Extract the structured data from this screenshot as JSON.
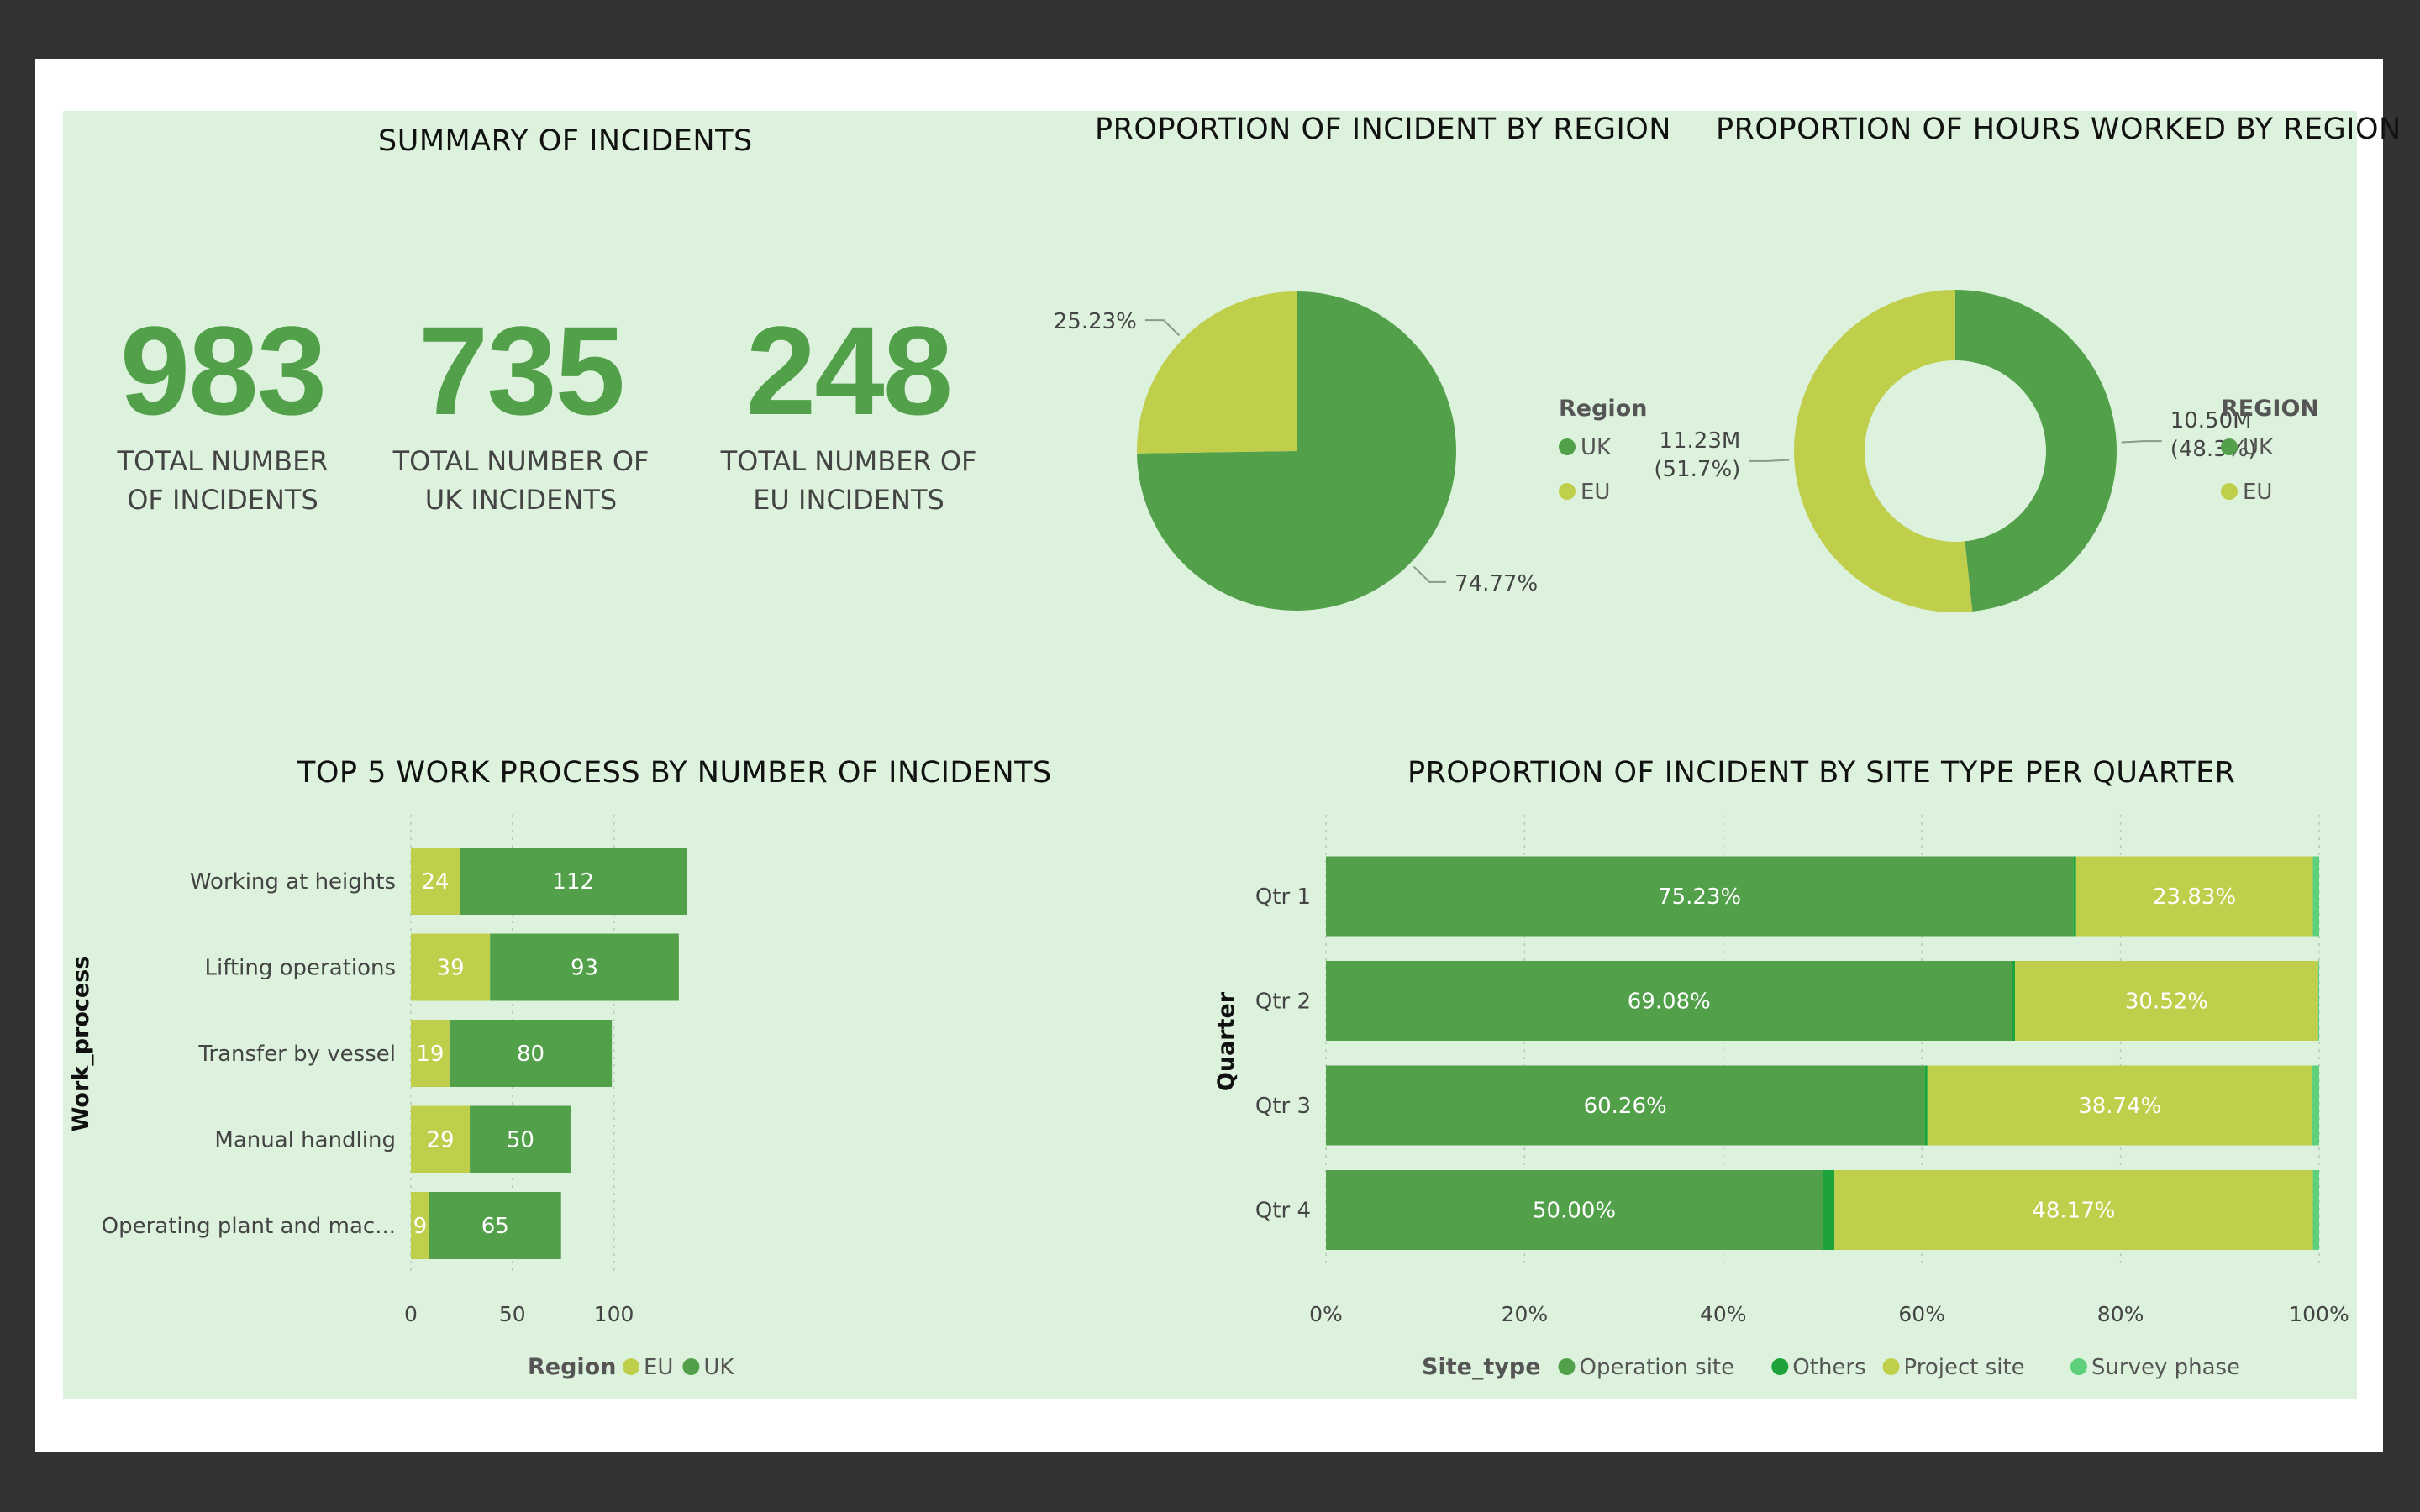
{
  "colors": {
    "uk": "#52a04a",
    "eu": "#bfcf4c",
    "operation_site": "#52a04a",
    "others": "#1ea33a",
    "project_site": "#bfcf4c",
    "survey_phase": "#5ecf7a",
    "background": "#ddf2dd"
  },
  "summary": {
    "title": "SUMMARY OF INCIDENTS",
    "kpis": [
      {
        "value": "983",
        "label": "TOTAL NUMBER\nOF INCIDENTS"
      },
      {
        "value": "735",
        "label": "TOTAL NUMBER OF\nUK INCIDENTS"
      },
      {
        "value": "248",
        "label": "TOTAL NUMBER OF\nEU INCIDENTS"
      }
    ]
  },
  "chart_data": [
    {
      "type": "pie",
      "title": "PROPORTION OF INCIDENT BY REGION",
      "legend_title": "Region",
      "legend_position": "right",
      "slices": [
        {
          "name": "UK",
          "value": 74.77,
          "label": "74.77%"
        },
        {
          "name": "EU",
          "value": 25.23,
          "label": "25.23%"
        }
      ]
    },
    {
      "type": "pie",
      "subtype": "donut",
      "title": "PROPORTION OF HOURS WORKED BY REGION",
      "legend_title": "REGION",
      "legend_position": "right",
      "slices": [
        {
          "name": "UK",
          "value": 10.5,
          "label": "10.50M",
          "sublabel": "(48.3%)"
        },
        {
          "name": "EU",
          "value": 11.23,
          "label": "11.23M",
          "sublabel": "(51.7%)"
        }
      ]
    },
    {
      "type": "bar",
      "orientation": "horizontal",
      "stacked": true,
      "title": "TOP 5 WORK PROCESS BY NUMBER OF INCIDENTS",
      "ylabel": "Work_process",
      "legend_title": "Region",
      "legend_position": "bottom",
      "categories": [
        "Working at heights",
        "Lifting operations",
        "Transfer by vessel",
        "Manual handling",
        "Operating plant and mac..."
      ],
      "series": [
        {
          "name": "EU",
          "values": [
            24,
            39,
            19,
            29,
            9
          ]
        },
        {
          "name": "UK",
          "values": [
            112,
            93,
            80,
            50,
            65
          ]
        }
      ],
      "xticks": [
        "0",
        "50",
        "100"
      ],
      "xlim": [
        0,
        136
      ],
      "grid": true
    },
    {
      "type": "bar",
      "orientation": "horizontal",
      "stacked": true,
      "normalized": true,
      "title": "PROPORTION OF INCIDENT BY SITE TYPE PER QUARTER",
      "ylabel": "Quarter",
      "legend_title": "Site_type",
      "legend_position": "bottom",
      "categories": [
        "Qtr 1",
        "Qtr 2",
        "Qtr 3",
        "Qtr 4"
      ],
      "series": [
        {
          "name": "Operation site",
          "values": [
            75.23,
            69.08,
            60.26,
            50.0
          ],
          "labels": [
            "75.23%",
            "69.08%",
            "60.26%",
            "50.00%"
          ]
        },
        {
          "name": "Others",
          "values": [
            0.3,
            0.3,
            0.3,
            1.2
          ],
          "labels": [
            "",
            "",
            "",
            ""
          ]
        },
        {
          "name": "Project site",
          "values": [
            23.83,
            30.52,
            38.74,
            48.17
          ],
          "labels": [
            "23.83%",
            "30.52%",
            "38.74%",
            "48.17%"
          ]
        },
        {
          "name": "Survey phase",
          "values": [
            0.64,
            0.1,
            0.7,
            0.63
          ],
          "labels": [
            "",
            "",
            "",
            ""
          ]
        }
      ],
      "xticks": [
        "0%",
        "20%",
        "40%",
        "60%",
        "80%",
        "100%"
      ],
      "xlim": [
        0,
        100
      ],
      "grid": true
    }
  ]
}
